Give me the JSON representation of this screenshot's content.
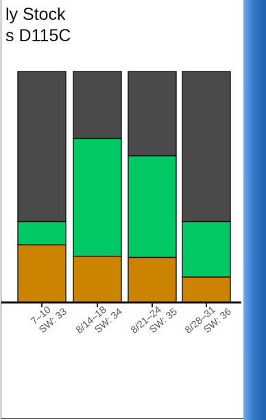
{
  "chart_data": {
    "type": "bar",
    "stacked": true,
    "title": [
      "ly Stock",
      "s D115C"
    ],
    "categories": [
      [
        "7–10",
        "SW: 33"
      ],
      [
        "8/14–18",
        "SW: 34"
      ],
      [
        "8/21–24",
        "SW: 35"
      ],
      [
        "8/28–31",
        "SW: 36"
      ]
    ],
    "series": [
      {
        "color": "#CC8400",
        "values": [
          0.25,
          0.2,
          0.195,
          0.11
        ]
      },
      {
        "color": "#00C864",
        "values": [
          0.1,
          0.51,
          0.44,
          0.24
        ]
      },
      {
        "color": "#4A4A4A",
        "values": [
          0.65,
          0.29,
          0.365,
          0.65
        ]
      }
    ],
    "ylim": [
      0,
      1
    ],
    "grid": false
  }
}
